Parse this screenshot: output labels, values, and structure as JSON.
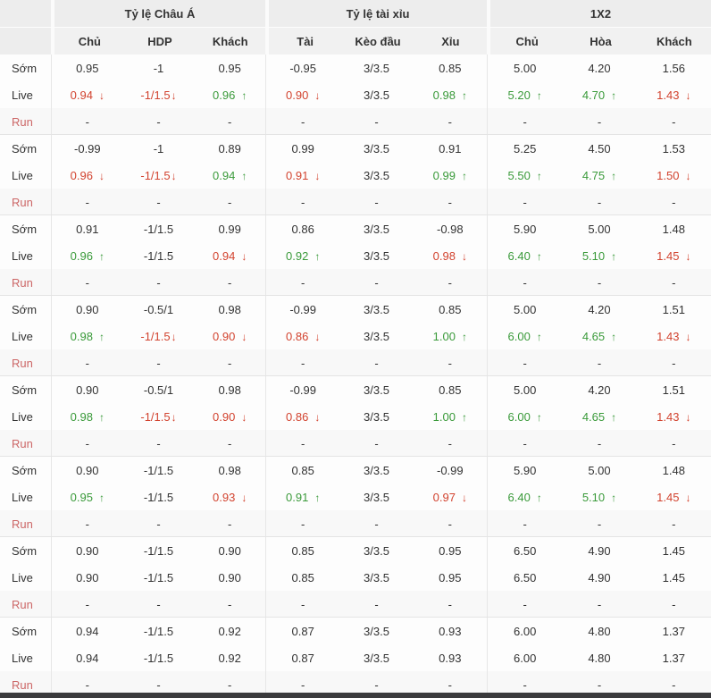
{
  "colors": {
    "up": "#3a9a3a",
    "down": "#d2432f",
    "run_label": "#cc6666",
    "header_bg": "#ededed",
    "bottom_bar": "#3a3a3c"
  },
  "icons": {
    "up_arrow": "↑",
    "down_arrow": "↓"
  },
  "header": {
    "groups": [
      {
        "title": "Tỷ lệ Châu Á",
        "cols": [
          "Chủ",
          "HDP",
          "Khách"
        ]
      },
      {
        "title": "Tỷ lệ tài xỉu",
        "cols": [
          "Tài",
          "Kèo đầu",
          "Xỉu"
        ]
      },
      {
        "title": "1X2",
        "cols": [
          "Chủ",
          "Hòa",
          "Khách"
        ]
      }
    ]
  },
  "row_labels": {
    "early": "Sớm",
    "live": "Live",
    "run": "Run"
  },
  "groups": [
    {
      "early": [
        [
          "0.95",
          ""
        ],
        [
          "-1",
          ""
        ],
        [
          "0.95",
          ""
        ],
        [
          "-0.95",
          ""
        ],
        [
          "3/3.5",
          ""
        ],
        [
          "0.85",
          ""
        ],
        [
          "5.00",
          ""
        ],
        [
          "4.20",
          ""
        ],
        [
          "1.56",
          ""
        ]
      ],
      "live": [
        [
          "0.94",
          "down"
        ],
        [
          "-1/1.5",
          "down"
        ],
        [
          "0.96",
          "up"
        ],
        [
          "0.90",
          "down"
        ],
        [
          "3/3.5",
          ""
        ],
        [
          "0.98",
          "up"
        ],
        [
          "5.20",
          "up"
        ],
        [
          "4.70",
          "up"
        ],
        [
          "1.43",
          "down"
        ]
      ],
      "run": [
        "-",
        "-",
        "-",
        "-",
        "-",
        "-",
        "-",
        "-",
        "-"
      ]
    },
    {
      "early": [
        [
          "-0.99",
          ""
        ],
        [
          "-1",
          ""
        ],
        [
          "0.89",
          ""
        ],
        [
          "0.99",
          ""
        ],
        [
          "3/3.5",
          ""
        ],
        [
          "0.91",
          ""
        ],
        [
          "5.25",
          ""
        ],
        [
          "4.50",
          ""
        ],
        [
          "1.53",
          ""
        ]
      ],
      "live": [
        [
          "0.96",
          "down"
        ],
        [
          "-1/1.5",
          "down"
        ],
        [
          "0.94",
          "up"
        ],
        [
          "0.91",
          "down"
        ],
        [
          "3/3.5",
          ""
        ],
        [
          "0.99",
          "up"
        ],
        [
          "5.50",
          "up"
        ],
        [
          "4.75",
          "up"
        ],
        [
          "1.50",
          "down"
        ]
      ],
      "run": [
        "-",
        "-",
        "-",
        "-",
        "-",
        "-",
        "-",
        "-",
        "-"
      ]
    },
    {
      "early": [
        [
          "0.91",
          ""
        ],
        [
          "-1/1.5",
          ""
        ],
        [
          "0.99",
          ""
        ],
        [
          "0.86",
          ""
        ],
        [
          "3/3.5",
          ""
        ],
        [
          "-0.98",
          ""
        ],
        [
          "5.90",
          ""
        ],
        [
          "5.00",
          ""
        ],
        [
          "1.48",
          ""
        ]
      ],
      "live": [
        [
          "0.96",
          "up"
        ],
        [
          "-1/1.5",
          ""
        ],
        [
          "0.94",
          "down"
        ],
        [
          "0.92",
          "up"
        ],
        [
          "3/3.5",
          ""
        ],
        [
          "0.98",
          "down"
        ],
        [
          "6.40",
          "up"
        ],
        [
          "5.10",
          "up"
        ],
        [
          "1.45",
          "down"
        ]
      ],
      "run": [
        "-",
        "-",
        "-",
        "-",
        "-",
        "-",
        "-",
        "-",
        "-"
      ]
    },
    {
      "early": [
        [
          "0.90",
          ""
        ],
        [
          "-0.5/1",
          ""
        ],
        [
          "0.98",
          ""
        ],
        [
          "-0.99",
          ""
        ],
        [
          "3/3.5",
          ""
        ],
        [
          "0.85",
          ""
        ],
        [
          "5.00",
          ""
        ],
        [
          "4.20",
          ""
        ],
        [
          "1.51",
          ""
        ]
      ],
      "live": [
        [
          "0.98",
          "up"
        ],
        [
          "-1/1.5",
          "down"
        ],
        [
          "0.90",
          "down"
        ],
        [
          "0.86",
          "down"
        ],
        [
          "3/3.5",
          ""
        ],
        [
          "1.00",
          "up"
        ],
        [
          "6.00",
          "up"
        ],
        [
          "4.65",
          "up"
        ],
        [
          "1.43",
          "down"
        ]
      ],
      "run": [
        "-",
        "-",
        "-",
        "-",
        "-",
        "-",
        "-",
        "-",
        "-"
      ]
    },
    {
      "early": [
        [
          "0.90",
          ""
        ],
        [
          "-0.5/1",
          ""
        ],
        [
          "0.98",
          ""
        ],
        [
          "-0.99",
          ""
        ],
        [
          "3/3.5",
          ""
        ],
        [
          "0.85",
          ""
        ],
        [
          "5.00",
          ""
        ],
        [
          "4.20",
          ""
        ],
        [
          "1.51",
          ""
        ]
      ],
      "live": [
        [
          "0.98",
          "up"
        ],
        [
          "-1/1.5",
          "down"
        ],
        [
          "0.90",
          "down"
        ],
        [
          "0.86",
          "down"
        ],
        [
          "3/3.5",
          ""
        ],
        [
          "1.00",
          "up"
        ],
        [
          "6.00",
          "up"
        ],
        [
          "4.65",
          "up"
        ],
        [
          "1.43",
          "down"
        ]
      ],
      "run": [
        "-",
        "-",
        "-",
        "-",
        "-",
        "-",
        "-",
        "-",
        "-"
      ]
    },
    {
      "early": [
        [
          "0.90",
          ""
        ],
        [
          "-1/1.5",
          ""
        ],
        [
          "0.98",
          ""
        ],
        [
          "0.85",
          ""
        ],
        [
          "3/3.5",
          ""
        ],
        [
          "-0.99",
          ""
        ],
        [
          "5.90",
          ""
        ],
        [
          "5.00",
          ""
        ],
        [
          "1.48",
          ""
        ]
      ],
      "live": [
        [
          "0.95",
          "up"
        ],
        [
          "-1/1.5",
          ""
        ],
        [
          "0.93",
          "down"
        ],
        [
          "0.91",
          "up"
        ],
        [
          "3/3.5",
          ""
        ],
        [
          "0.97",
          "down"
        ],
        [
          "6.40",
          "up"
        ],
        [
          "5.10",
          "up"
        ],
        [
          "1.45",
          "down"
        ]
      ],
      "run": [
        "-",
        "-",
        "-",
        "-",
        "-",
        "-",
        "-",
        "-",
        "-"
      ]
    },
    {
      "early": [
        [
          "0.90",
          ""
        ],
        [
          "-1/1.5",
          ""
        ],
        [
          "0.90",
          ""
        ],
        [
          "0.85",
          ""
        ],
        [
          "3/3.5",
          ""
        ],
        [
          "0.95",
          ""
        ],
        [
          "6.50",
          ""
        ],
        [
          "4.90",
          ""
        ],
        [
          "1.45",
          ""
        ]
      ],
      "live": [
        [
          "0.90",
          ""
        ],
        [
          "-1/1.5",
          ""
        ],
        [
          "0.90",
          ""
        ],
        [
          "0.85",
          ""
        ],
        [
          "3/3.5",
          ""
        ],
        [
          "0.95",
          ""
        ],
        [
          "6.50",
          ""
        ],
        [
          "4.90",
          ""
        ],
        [
          "1.45",
          ""
        ]
      ],
      "run": [
        "-",
        "-",
        "-",
        "-",
        "-",
        "-",
        "-",
        "-",
        "-"
      ]
    },
    {
      "early": [
        [
          "0.94",
          ""
        ],
        [
          "-1/1.5",
          ""
        ],
        [
          "0.92",
          ""
        ],
        [
          "0.87",
          ""
        ],
        [
          "3/3.5",
          ""
        ],
        [
          "0.93",
          ""
        ],
        [
          "6.00",
          ""
        ],
        [
          "4.80",
          ""
        ],
        [
          "1.37",
          ""
        ]
      ],
      "live": [
        [
          "0.94",
          ""
        ],
        [
          "-1/1.5",
          ""
        ],
        [
          "0.92",
          ""
        ],
        [
          "0.87",
          ""
        ],
        [
          "3/3.5",
          ""
        ],
        [
          "0.93",
          ""
        ],
        [
          "6.00",
          ""
        ],
        [
          "4.80",
          ""
        ],
        [
          "1.37",
          ""
        ]
      ],
      "run": [
        "-",
        "-",
        "-",
        "-",
        "-",
        "-",
        "-",
        "-",
        "-"
      ]
    }
  ]
}
